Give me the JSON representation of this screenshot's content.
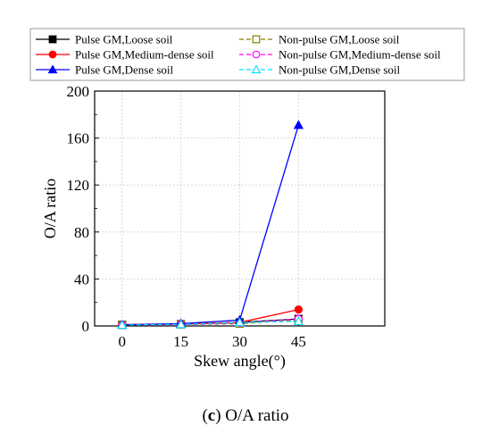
{
  "chart_data": {
    "type": "line",
    "x": [
      0,
      15,
      30,
      45
    ],
    "xlabel": "Skew angle(°)",
    "ylabel": "O/A ratio",
    "xlim": [
      -7,
      67
    ],
    "ylim": [
      0,
      200
    ],
    "x_ticks": [
      "0",
      "15",
      "30",
      "45"
    ],
    "y_ticks": [
      "0",
      "40",
      "80",
      "120",
      "160",
      "200"
    ],
    "grid": true,
    "legend_position": "top",
    "series": [
      {
        "name": "Pulse GM,Loose soil",
        "values": [
          1,
          1.5,
          3,
          6
        ],
        "color": "#000000",
        "marker": "square-filled",
        "dash": "solid"
      },
      {
        "name": "Non-pulse GM,Loose soil",
        "values": [
          0.8,
          1.2,
          2,
          5
        ],
        "color": "#808000",
        "marker": "square-open",
        "dash": "dashed"
      },
      {
        "name": "Pulse GM,Medium-dense soil",
        "values": [
          1,
          1.5,
          3,
          14
        ],
        "color": "#ff0000",
        "marker": "circle-filled",
        "dash": "solid"
      },
      {
        "name": "Non-pulse GM,Medium-dense soil",
        "values": [
          0.8,
          1.2,
          2.5,
          6
        ],
        "color": "#ff00ff",
        "marker": "circle-open",
        "dash": "dashed"
      },
      {
        "name": "Pulse GM,Dense soil",
        "values": [
          1,
          2,
          5,
          171
        ],
        "color": "#0000ff",
        "marker": "triangle-filled",
        "dash": "solid"
      },
      {
        "name": "Non-pulse GM,Dense soil",
        "values": [
          0.8,
          1.3,
          3,
          4
        ],
        "color": "#00e0ff",
        "marker": "triangle-open",
        "dash": "dashed"
      }
    ]
  },
  "caption": {
    "letter": "c",
    "text": " O/A ratio"
  }
}
